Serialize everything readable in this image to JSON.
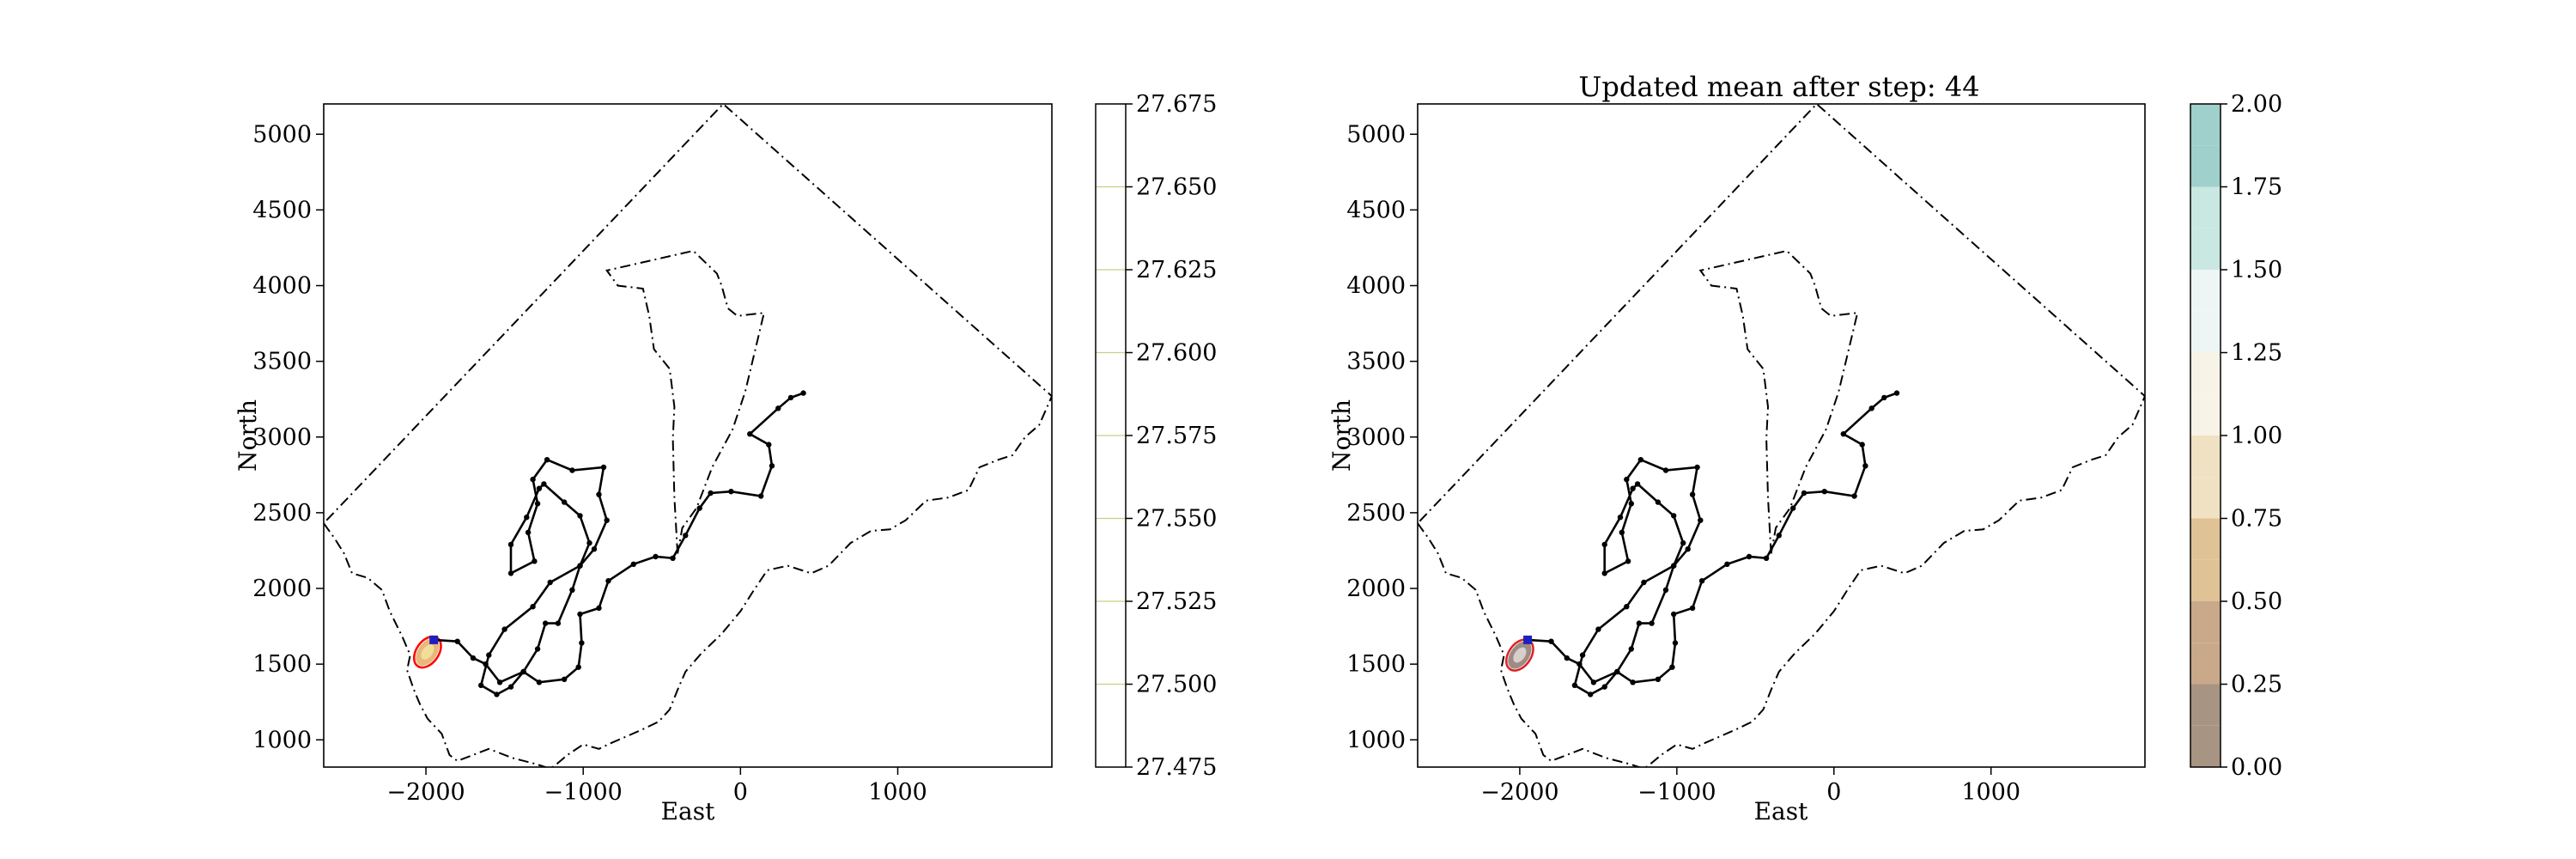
{
  "chart_data": [
    {
      "type": "line",
      "title": "",
      "xlabel": "East",
      "ylabel": "North",
      "xlim": [
        -2650,
        1980
      ],
      "ylim": [
        820,
        5200
      ],
      "xticks": [
        -2000,
        -1000,
        0,
        1000
      ],
      "xtick_labels": [
        "−2000",
        "−1000",
        "0",
        "1000"
      ],
      "yticks": [
        1000,
        1500,
        2000,
        2500,
        3000,
        3500,
        4000,
        4500,
        5000
      ],
      "ytick_labels": [
        "1000",
        "1500",
        "2000",
        "2500",
        "3000",
        "3500",
        "4000",
        "4500",
        "5000"
      ],
      "grid": false,
      "colorbar": {
        "ticks": [
          27.475,
          27.5,
          27.525,
          27.55,
          27.575,
          27.6,
          27.625,
          27.65,
          27.675
        ],
        "tick_labels": [
          "27.475",
          "27.500",
          "27.525",
          "27.550",
          "27.575",
          "27.600",
          "27.625",
          "27.650",
          "27.675"
        ],
        "fill": "#ffffff",
        "tick_color": "#c9cf86"
      },
      "highlight": {
        "center": [
          -1990,
          1580
        ],
        "ellipse_color": "#ff0000",
        "fill_colors": [
          "#e8b87a",
          "#f2dc9a"
        ],
        "marker_color": "#1f1fbf"
      }
    },
    {
      "type": "line",
      "title": "Updated mean after step: 44",
      "xlabel": "East",
      "ylabel": "North",
      "xlim": [
        -2650,
        1980
      ],
      "ylim": [
        820,
        5200
      ],
      "xticks": [
        -2000,
        -1000,
        0,
        1000
      ],
      "xtick_labels": [
        "−2000",
        "−1000",
        "0",
        "1000"
      ],
      "yticks": [
        1000,
        1500,
        2000,
        2500,
        3000,
        3500,
        4000,
        4500,
        5000
      ],
      "ytick_labels": [
        "1000",
        "1500",
        "2000",
        "2500",
        "3000",
        "3500",
        "4000",
        "4500",
        "5000"
      ],
      "grid": false,
      "colorbar": {
        "ticks": [
          0,
          0.25,
          0.5,
          0.75,
          1.0,
          1.25,
          1.5,
          1.75,
          2.0
        ],
        "tick_labels": [
          "0.00",
          "0.25",
          "0.50",
          "0.75",
          "1.00",
          "1.25",
          "1.50",
          "1.75",
          "2.00"
        ],
        "levels": [
          0,
          0.25,
          0.5,
          0.75,
          1.0,
          1.25,
          1.5,
          1.75,
          2.0
        ],
        "colors": [
          "#a89482",
          "#c9a98a",
          "#e0c297",
          "#f0e1c3",
          "#f8f3e7",
          "#edf6f4",
          "#c9e8e2",
          "#9fd0cb",
          "#82b5af",
          "#86a49f"
        ]
      },
      "highlight": {
        "center": [
          -2000,
          1560
        ],
        "ellipse_color": "#dd2222",
        "fill_colors": [
          "#9d8c86",
          "#d8cfcc"
        ],
        "marker_color": "#1f1fbf"
      }
    }
  ],
  "boundary": {
    "style": "dash-dot",
    "outer": [
      [
        -2650,
        2430
      ],
      [
        -2580,
        2330
      ],
      [
        -2520,
        2230
      ],
      [
        -2470,
        2100
      ],
      [
        -2370,
        2070
      ],
      [
        -2280,
        1990
      ],
      [
        -2230,
        1850
      ],
      [
        -2150,
        1680
      ],
      [
        -2100,
        1560
      ],
      [
        -2120,
        1460
      ],
      [
        -2080,
        1340
      ],
      [
        -2040,
        1240
      ],
      [
        -1990,
        1140
      ],
      [
        -1900,
        1040
      ],
      [
        -1850,
        900
      ],
      [
        -1800,
        860
      ],
      [
        -1600,
        940
      ],
      [
        -1450,
        880
      ],
      [
        -1300,
        840
      ],
      [
        -1210,
        810
      ],
      [
        -1180,
        830
      ],
      [
        -1100,
        900
      ],
      [
        -1000,
        970
      ],
      [
        -900,
        940
      ],
      [
        -820,
        980
      ],
      [
        -730,
        1020
      ],
      [
        -620,
        1070
      ],
      [
        -520,
        1120
      ],
      [
        -450,
        1200
      ],
      [
        -400,
        1330
      ],
      [
        -350,
        1450
      ],
      [
        -250,
        1570
      ],
      [
        -120,
        1700
      ],
      [
        0,
        1850
      ],
      [
        80,
        1980
      ],
      [
        170,
        2120
      ],
      [
        300,
        2150
      ],
      [
        450,
        2100
      ],
      [
        560,
        2150
      ],
      [
        700,
        2300
      ],
      [
        830,
        2380
      ],
      [
        950,
        2390
      ],
      [
        1050,
        2450
      ],
      [
        1180,
        2580
      ],
      [
        1320,
        2600
      ],
      [
        1450,
        2650
      ],
      [
        1520,
        2800
      ],
      [
        1640,
        2850
      ],
      [
        1730,
        2880
      ],
      [
        1810,
        3000
      ],
      [
        1900,
        3080
      ],
      [
        1980,
        3270
      ],
      [
        -110,
        5200
      ],
      [
        -2650,
        2430
      ]
    ],
    "inner": [
      [
        -400,
        2230
      ],
      [
        -420,
        2600
      ],
      [
        -430,
        2990
      ],
      [
        -420,
        3200
      ],
      [
        -450,
        3450
      ],
      [
        -550,
        3580
      ],
      [
        -580,
        3800
      ],
      [
        -620,
        3980
      ],
      [
        -780,
        4000
      ],
      [
        -850,
        4100
      ],
      [
        -300,
        4230
      ],
      [
        -150,
        4080
      ],
      [
        -120,
        4000
      ],
      [
        -80,
        3850
      ],
      [
        -20,
        3800
      ],
      [
        150,
        3820
      ],
      [
        30,
        3300
      ],
      [
        -50,
        3050
      ],
      [
        -180,
        2800
      ],
      [
        -280,
        2530
      ],
      [
        -370,
        2400
      ],
      [
        -400,
        2230
      ]
    ]
  },
  "path": {
    "color": "#000000",
    "points": [
      [
        -1950,
        1660
      ],
      [
        -1800,
        1650
      ],
      [
        -1700,
        1540
      ],
      [
        -1620,
        1500
      ],
      [
        -1530,
        1380
      ],
      [
        -1380,
        1450
      ],
      [
        -1290,
        1600
      ],
      [
        -1240,
        1770
      ],
      [
        -1160,
        1770
      ],
      [
        -1070,
        1990
      ],
      [
        -1020,
        2150
      ],
      [
        -930,
        2260
      ],
      [
        -850,
        2450
      ],
      [
        -900,
        2620
      ],
      [
        -870,
        2800
      ],
      [
        -1070,
        2780
      ],
      [
        -1230,
        2850
      ],
      [
        -1320,
        2720
      ],
      [
        -1290,
        2560
      ],
      [
        -1350,
        2370
      ],
      [
        -1310,
        2180
      ],
      [
        -1460,
        2100
      ],
      [
        -1460,
        2290
      ],
      [
        -1360,
        2470
      ],
      [
        -1280,
        2660
      ],
      [
        -1250,
        2690
      ],
      [
        -1120,
        2570
      ],
      [
        -1020,
        2480
      ],
      [
        -960,
        2300
      ],
      [
        -1020,
        2150
      ],
      [
        -1210,
        2040
      ],
      [
        -1320,
        1880
      ],
      [
        -1500,
        1730
      ],
      [
        -1600,
        1560
      ],
      [
        -1650,
        1360
      ],
      [
        -1550,
        1300
      ],
      [
        -1460,
        1350
      ],
      [
        -1380,
        1450
      ],
      [
        -1280,
        1380
      ],
      [
        -1120,
        1400
      ],
      [
        -1030,
        1480
      ],
      [
        -1010,
        1640
      ],
      [
        -1020,
        1830
      ],
      [
        -900,
        1870
      ],
      [
        -840,
        2050
      ],
      [
        -680,
        2160
      ],
      [
        -540,
        2210
      ],
      [
        -430,
        2200
      ],
      [
        -350,
        2350
      ],
      [
        -260,
        2530
      ],
      [
        -190,
        2630
      ],
      [
        -60,
        2640
      ],
      [
        130,
        2610
      ],
      [
        200,
        2810
      ],
      [
        180,
        2950
      ],
      [
        60,
        3020
      ],
      [
        240,
        3190
      ],
      [
        320,
        3260
      ],
      [
        400,
        3290
      ]
    ]
  }
}
